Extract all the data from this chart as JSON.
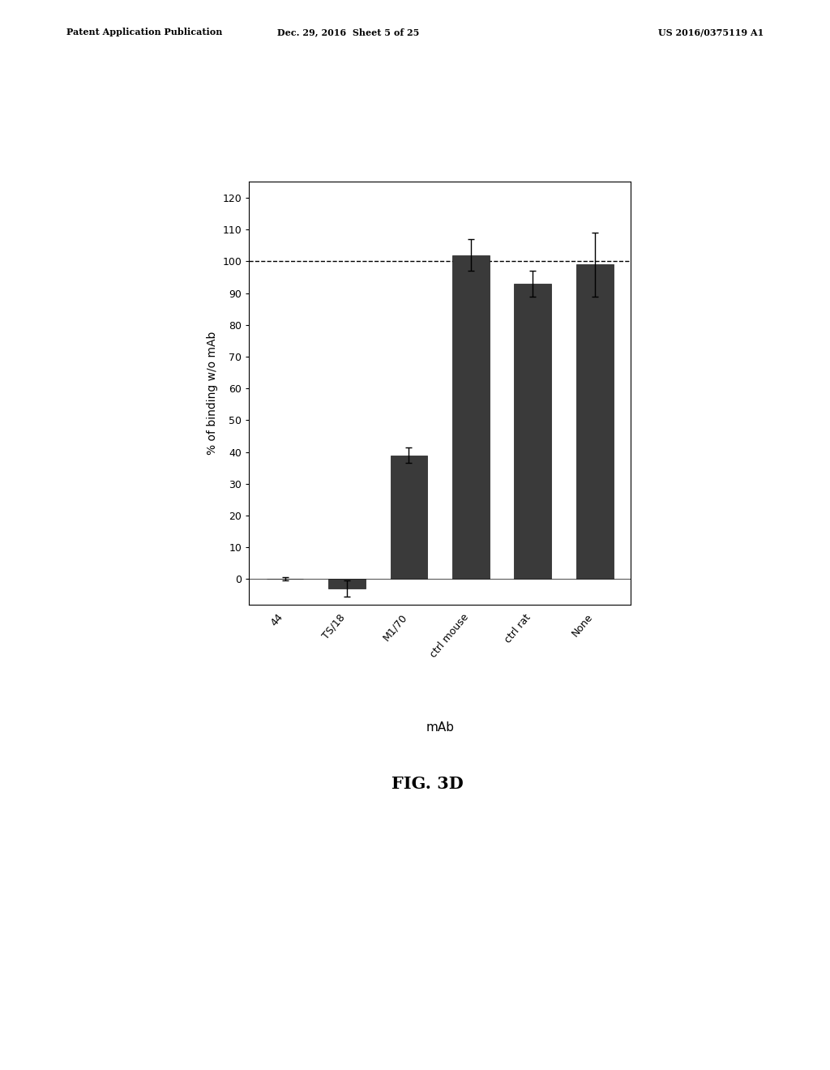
{
  "categories": [
    "44",
    "TS/18",
    "M1/70",
    "ctrl mouse",
    "ctrl rat",
    "None"
  ],
  "values": [
    0.0,
    -3.0,
    39.0,
    102.0,
    93.0,
    99.0
  ],
  "errors": [
    0.5,
    2.5,
    2.5,
    5.0,
    4.0,
    10.0
  ],
  "bar_color": "#3a3a3a",
  "bar_width": 0.6,
  "ylabel": "% of binding w/o mAb",
  "xlabel": "mAb",
  "fig_label": "FIG. 3D",
  "ylim": [
    -8,
    125
  ],
  "yticks": [
    0,
    10,
    20,
    30,
    40,
    50,
    60,
    70,
    80,
    90,
    100,
    110,
    120
  ],
  "dashed_line_y": 100,
  "background_color": "#ffffff",
  "patent_left": "Patent Application Publication",
  "patent_mid": "Dec. 29, 2016  Sheet 5 of 25",
  "patent_right": "US 2016/0375119 A1",
  "ylabel_fontsize": 10,
  "xlabel_fontsize": 11,
  "tick_fontsize": 9,
  "fig_label_fontsize": 15,
  "patent_fontsize": 8
}
